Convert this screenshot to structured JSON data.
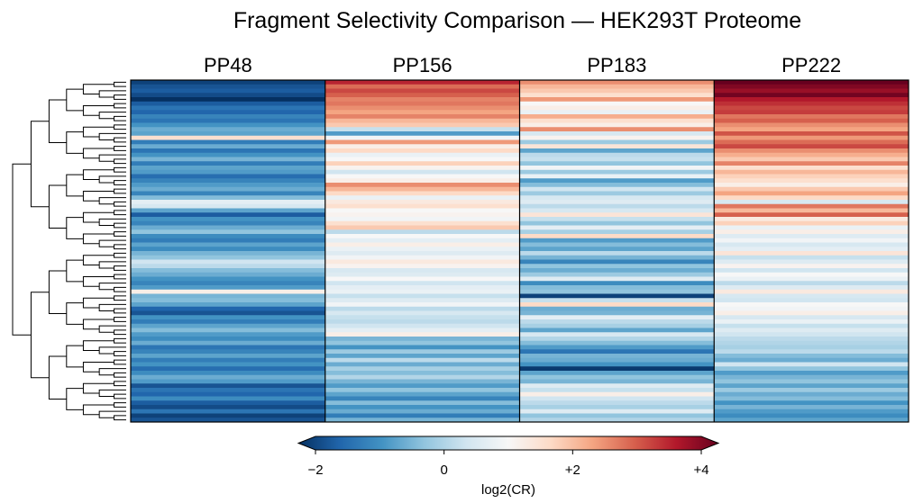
{
  "chart_data": {
    "type": "heatmap",
    "title": "Fragment Selectivity Comparison — HEK293T Proteome",
    "columns": [
      "PP48",
      "PP156",
      "PP183",
      "PP222"
    ],
    "colorbar": {
      "label": "log2(CR)",
      "min": -2,
      "max": 4,
      "ticks": [
        {
          "value": -2,
          "label": "−2"
        },
        {
          "value": 0,
          "label": "0"
        },
        {
          "value": 2,
          "label": "+2"
        },
        {
          "value": 4,
          "label": "+4"
        }
      ],
      "colormap": "diverging blue-white-red, centered at 1",
      "extend": "both"
    },
    "dendrogram": "rows clustered, drawn on left",
    "grid": false,
    "row_values": [
      [
        -1.8,
        3.3,
        2.4,
        4.0
      ],
      [
        -1.6,
        2.7,
        2.0,
        3.8
      ],
      [
        -1.5,
        3.0,
        1.8,
        3.6
      ],
      [
        -1.7,
        2.8,
        1.5,
        3.9
      ],
      [
        -2.0,
        2.5,
        2.3,
        3.4
      ],
      [
        -1.5,
        2.6,
        1.0,
        3.2
      ],
      [
        -1.2,
        2.4,
        1.2,
        3.0
      ],
      [
        -1.4,
        2.2,
        0.8,
        3.1
      ],
      [
        -1.0,
        2.5,
        2.1,
        2.6
      ],
      [
        -1.2,
        2.0,
        1.5,
        2.8
      ],
      [
        -0.8,
        1.8,
        1.2,
        2.4
      ],
      [
        -0.5,
        0.3,
        2.4,
        2.2
      ],
      [
        -0.6,
        -0.7,
        0.5,
        2.9
      ],
      [
        1.5,
        0.9,
        1.1,
        2.3
      ],
      [
        -1.1,
        2.3,
        -0.1,
        2.7
      ],
      [
        -0.5,
        1.2,
        1.4,
        3.0
      ],
      [
        -1.2,
        1.6,
        -0.6,
        2.4
      ],
      [
        -0.8,
        0.8,
        0.2,
        2.1
      ],
      [
        -0.4,
        1.0,
        0.3,
        1.8
      ],
      [
        -1.1,
        1.7,
        -0.2,
        2.5
      ],
      [
        -0.6,
        1.1,
        0.9,
        1.5
      ],
      [
        -0.7,
        0.4,
        -0.1,
        2.0
      ],
      [
        -1.3,
        1.0,
        0.8,
        1.7
      ],
      [
        -1.0,
        1.2,
        -0.7,
        1.5
      ],
      [
        -0.7,
        2.4,
        -0.3,
        1.2
      ],
      [
        -0.5,
        2.0,
        0.4,
        1.8
      ],
      [
        -1.0,
        1.6,
        -0.1,
        2.2
      ],
      [
        -0.3,
        0.8,
        0.5,
        1.6
      ],
      [
        0.7,
        1.3,
        0.6,
        0.5
      ],
      [
        0.5,
        1.5,
        0.2,
        2.6
      ],
      [
        -0.6,
        1.0,
        0.5,
        2.0
      ],
      [
        -1.5,
        1.1,
        1.4,
        2.8
      ],
      [
        -0.8,
        0.9,
        0.3,
        1.3
      ],
      [
        -1.0,
        1.5,
        -0.2,
        1.7
      ],
      [
        -0.5,
        1.8,
        0.7,
        0.8
      ],
      [
        -0.2,
        0.2,
        0.0,
        1.2
      ],
      [
        -0.9,
        1.0,
        1.6,
        0.6
      ],
      [
        -1.1,
        0.7,
        -0.7,
        0.9
      ],
      [
        -0.6,
        1.2,
        -0.3,
        0.5
      ],
      [
        -0.9,
        0.8,
        -0.6,
        0.7
      ],
      [
        -0.4,
        0.6,
        0.2,
        1.4
      ],
      [
        -0.2,
        0.9,
        -0.4,
        0.3
      ],
      [
        0.4,
        1.3,
        -1.0,
        0.6
      ],
      [
        0.2,
        1.1,
        -0.2,
        1.1
      ],
      [
        -0.3,
        0.5,
        -0.5,
        0.4
      ],
      [
        -0.5,
        0.6,
        -0.1,
        1.0
      ],
      [
        -0.8,
        1.0,
        0.6,
        0.8
      ],
      [
        -1.0,
        0.4,
        -0.9,
        0.2
      ],
      [
        -0.7,
        0.7,
        -0.3,
        0.6
      ],
      [
        1.2,
        0.8,
        -0.2,
        1.3
      ],
      [
        -0.4,
        0.3,
        -1.8,
        0.5
      ],
      [
        -0.3,
        0.6,
        0.3,
        0.4
      ],
      [
        -0.6,
        0.9,
        1.6,
        1.0
      ],
      [
        -1.4,
        0.2,
        -0.5,
        0.9
      ],
      [
        -1.6,
        0.5,
        -0.4,
        1.2
      ],
      [
        -0.8,
        0.3,
        0.7,
        0.5
      ],
      [
        -1.1,
        0.2,
        0.2,
        0.8
      ],
      [
        -0.6,
        0.4,
        0.0,
        0.3
      ],
      [
        -0.3,
        0.7,
        -0.6,
        0.6
      ],
      [
        -0.7,
        1.2,
        0.5,
        0.4
      ],
      [
        -0.9,
        -0.4,
        0.1,
        0.2
      ],
      [
        -0.5,
        -0.2,
        -0.3,
        0.1
      ],
      [
        -1.2,
        -0.8,
        -0.7,
        0.0
      ],
      [
        -1.0,
        -0.1,
        -1.2,
        0.2
      ],
      [
        -0.6,
        -0.6,
        -0.4,
        -0.3
      ],
      [
        -1.1,
        0.2,
        -0.5,
        -0.5
      ],
      [
        -0.8,
        -0.5,
        -0.8,
        0.4
      ],
      [
        -1.3,
        0.0,
        -1.9,
        -0.2
      ],
      [
        -0.9,
        -0.3,
        -0.6,
        -0.7
      ],
      [
        -0.5,
        0.1,
        -0.2,
        -0.4
      ],
      [
        -0.7,
        -0.4,
        -0.4,
        -0.2
      ],
      [
        -1.6,
        -0.7,
        0.6,
        -0.6
      ],
      [
        -1.2,
        -0.2,
        0.3,
        -0.1
      ],
      [
        -1.4,
        -0.6,
        1.2,
        -0.5
      ],
      [
        -0.9,
        -1.0,
        0.4,
        -0.3
      ],
      [
        -1.5,
        -0.3,
        0.2,
        -0.8
      ],
      [
        -1.7,
        -0.8,
        0.0,
        -0.4
      ],
      [
        -1.2,
        -0.5,
        0.6,
        -0.7
      ],
      [
        -1.8,
        -1.1,
        -0.2,
        -0.9
      ],
      [
        -1.6,
        -0.4,
        0.1,
        -0.6
      ]
    ]
  }
}
